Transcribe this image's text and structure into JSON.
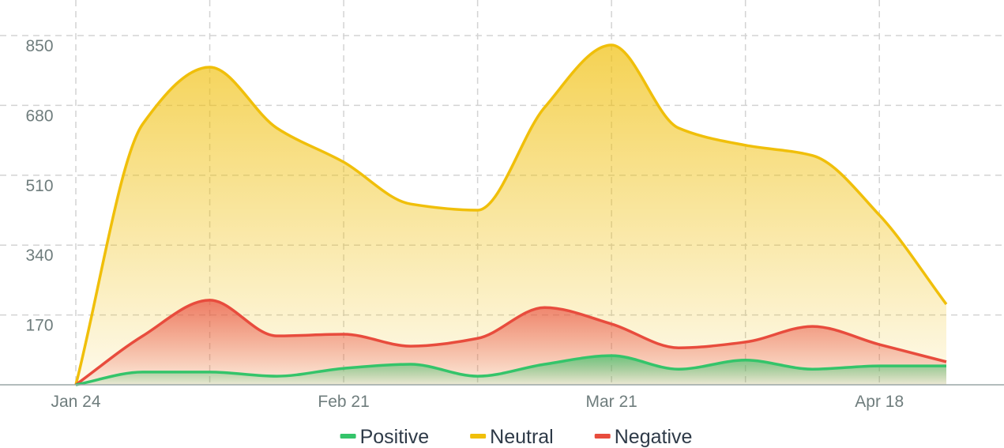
{
  "chart_data": {
    "type": "area",
    "categories": [
      "Jan 24",
      null,
      null,
      null,
      "Feb 21",
      null,
      null,
      null,
      "Mar 21",
      null,
      null,
      null,
      "Apr 18",
      null
    ],
    "series": [
      {
        "name": "Positive",
        "color": "#34c46a",
        "values": [
          0,
          31,
          31,
          21,
          40,
          50,
          21,
          50,
          71,
          38,
          60,
          38,
          46,
          46
        ]
      },
      {
        "name": "Neutral",
        "color": "#f0bf0a",
        "values": [
          0,
          635,
          773,
          625,
          542,
          440,
          425,
          675,
          827,
          625,
          583,
          558,
          413,
          196
        ]
      },
      {
        "name": "Negative",
        "color": "#e84c3d",
        "values": [
          0,
          119,
          206,
          119,
          123,
          94,
          113,
          188,
          148,
          90,
          104,
          142,
          98,
          56
        ]
      }
    ],
    "ylim": [
      0,
      850
    ],
    "yticks": [
      170,
      340,
      510,
      680,
      850
    ],
    "grid": true,
    "legend": "bottom"
  }
}
